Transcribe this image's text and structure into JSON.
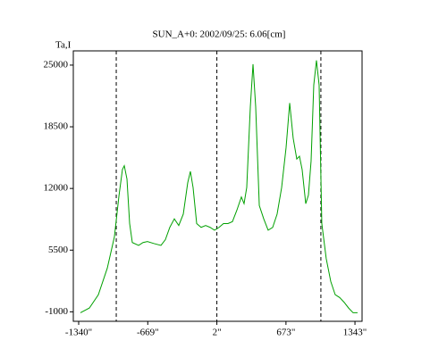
{
  "chart_data": {
    "type": "line",
    "title": "SUN_A+0: 2002/09/25: 6.06[cm]",
    "y_label": "Ta,I",
    "x": [
      -1323,
      -1236,
      -1149,
      -1062,
      -993,
      -949,
      -915,
      -897,
      -871,
      -845,
      -819,
      -758,
      -715,
      -672,
      -611,
      -541,
      -498,
      -455,
      -411,
      -368,
      -324,
      -281,
      -255,
      -229,
      -194,
      -151,
      -107,
      -64,
      -21,
      23,
      66,
      110,
      153,
      196,
      240,
      266,
      292,
      327,
      353,
      379,
      414,
      457,
      500,
      544,
      587,
      631,
      674,
      709,
      743,
      778,
      804,
      830,
      865,
      891,
      917,
      943,
      969,
      995,
      1021,
      1064,
      1108,
      1151,
      1195,
      1238,
      1281,
      1325,
      1368
    ],
    "series": [
      {
        "color": "#00a000",
        "values": [
          -1100,
          -600,
          800,
          3600,
          6900,
          11200,
          14000,
          14400,
          13000,
          8300,
          6300,
          6000,
          6300,
          6400,
          6200,
          6000,
          6600,
          7900,
          8800,
          8100,
          9300,
          12600,
          13800,
          12100,
          8300,
          7900,
          8100,
          7900,
          7600,
          7900,
          8300,
          8300,
          8500,
          9700,
          11100,
          10400,
          12100,
          20600,
          25100,
          20600,
          10200,
          8800,
          7600,
          7900,
          9300,
          12100,
          16300,
          21000,
          17300,
          15100,
          15400,
          14000,
          10400,
          11300,
          14900,
          22900,
          25500,
          22900,
          8300,
          4600,
          2200,
          800,
          500,
          0,
          -600,
          -1100,
          -1100
        ]
      }
    ],
    "vlines": [
      -975,
      2,
      1012
    ],
    "xlim": [
      -1392,
      1412
    ],
    "ylim": [
      -2000,
      26500
    ],
    "xticks": [
      {
        "value": -1340,
        "label": "-1340\""
      },
      {
        "value": -669,
        "label": "-669\""
      },
      {
        "value": 2,
        "label": "2\""
      },
      {
        "value": 673,
        "label": "673\""
      },
      {
        "value": 1343,
        "label": "1343\""
      }
    ],
    "yticks": [
      -1000,
      5500,
      12000,
      18500,
      25000
    ]
  }
}
